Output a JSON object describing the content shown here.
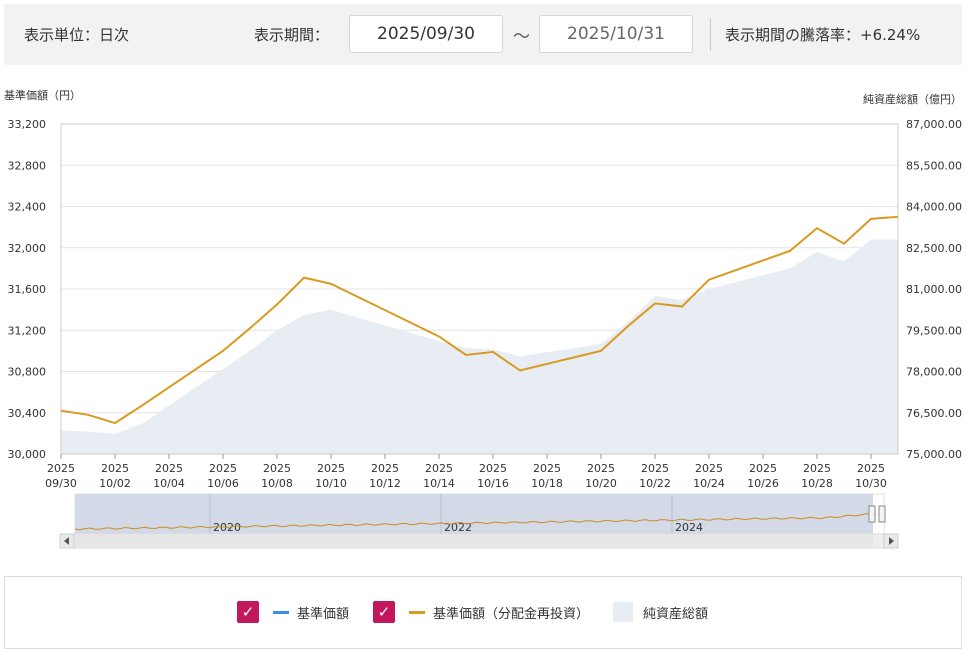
{
  "controls": {
    "unit_label": "表示単位：日次",
    "period_label": "表示期間：",
    "start_date": "2025/09/30",
    "separator": "〜",
    "end_date": "2025/10/31",
    "change_label": "表示期間の騰落率：+6.24%"
  },
  "legend": {
    "items": [
      {
        "label": "基準価額",
        "color": "#3a8ee6",
        "checked": true
      },
      {
        "label": "基準価額（分配金再投資）",
        "color": "#d89a1f",
        "checked": true
      },
      {
        "label": "純資産総額",
        "color": "#e8ecf3"
      }
    ]
  },
  "chart_data": {
    "type": "line",
    "left_axis_title": "基準価額（円）",
    "right_axis_title": "純資産総額（億円）",
    "left_ylim": [
      30000,
      33200
    ],
    "right_ylim": [
      75000,
      87000
    ],
    "left_ticks": [
      "33,200",
      "32,800",
      "32,400",
      "32,000",
      "31,600",
      "31,200",
      "30,800",
      "30,400",
      "30,000"
    ],
    "right_ticks": [
      "87,000.00",
      "85,500.00",
      "84,000.00",
      "82,500.00",
      "81,000.00",
      "79,500.00",
      "78,000.00",
      "76,500.00",
      "75,000.00"
    ],
    "x_ticks": [
      {
        "year": "2025",
        "day": "09/30",
        "d": 0
      },
      {
        "year": "2025",
        "day": "10/02",
        "d": 2
      },
      {
        "year": "2025",
        "day": "10/04",
        "d": 4
      },
      {
        "year": "2025",
        "day": "10/06",
        "d": 6
      },
      {
        "year": "2025",
        "day": "10/08",
        "d": 8
      },
      {
        "year": "2025",
        "day": "10/10",
        "d": 10
      },
      {
        "year": "2025",
        "day": "10/12",
        "d": 12
      },
      {
        "year": "2025",
        "day": "10/14",
        "d": 14
      },
      {
        "year": "2025",
        "day": "10/16",
        "d": 16
      },
      {
        "year": "2025",
        "day": "10/18",
        "d": 18
      },
      {
        "year": "2025",
        "day": "10/20",
        "d": 20
      },
      {
        "year": "2025",
        "day": "10/22",
        "d": 22
      },
      {
        "year": "2025",
        "day": "10/24",
        "d": 24
      },
      {
        "year": "2025",
        "day": "10/26",
        "d": 26
      },
      {
        "year": "2025",
        "day": "10/28",
        "d": 28
      },
      {
        "year": "2025",
        "day": "10/30",
        "d": 30
      }
    ],
    "x_range_days": [
      0,
      31
    ],
    "series": [
      {
        "name": "基準価額（分配金再投資）",
        "color": "#d89a1f",
        "axis": "left",
        "points": [
          {
            "d": 0,
            "v": 30420
          },
          {
            "d": 1,
            "v": 30380
          },
          {
            "d": 2,
            "v": 30300
          },
          {
            "d": 3,
            "v": 30470
          },
          {
            "d": 6,
            "v": 31000
          },
          {
            "d": 7,
            "v": 31220
          },
          {
            "d": 8,
            "v": 31450
          },
          {
            "d": 9,
            "v": 31710
          },
          {
            "d": 10,
            "v": 31650
          },
          {
            "d": 14,
            "v": 31140
          },
          {
            "d": 15,
            "v": 30960
          },
          {
            "d": 16,
            "v": 30990
          },
          {
            "d": 17,
            "v": 30810
          },
          {
            "d": 20,
            "v": 31000
          },
          {
            "d": 21,
            "v": 31240
          },
          {
            "d": 22,
            "v": 31460
          },
          {
            "d": 23,
            "v": 31430
          },
          {
            "d": 24,
            "v": 31690
          },
          {
            "d": 27,
            "v": 31970
          },
          {
            "d": 28,
            "v": 32190
          },
          {
            "d": 29,
            "v": 32040
          },
          {
            "d": 30,
            "v": 32280
          },
          {
            "d": 31,
            "v": 32300
          }
        ]
      },
      {
        "name": "純資産総額",
        "color": "#e8ecf3",
        "axis": "right",
        "type": "area",
        "points": [
          {
            "d": 0,
            "v": 75850
          },
          {
            "d": 1,
            "v": 75820
          },
          {
            "d": 2,
            "v": 75730
          },
          {
            "d": 3,
            "v": 76100
          },
          {
            "d": 7,
            "v": 78750
          },
          {
            "d": 8,
            "v": 79500
          },
          {
            "d": 9,
            "v": 80050
          },
          {
            "d": 10,
            "v": 80250
          },
          {
            "d": 14,
            "v": 79100
          },
          {
            "d": 15,
            "v": 78850
          },
          {
            "d": 16,
            "v": 78800
          },
          {
            "d": 17,
            "v": 78550
          },
          {
            "d": 20,
            "v": 79000
          },
          {
            "d": 21,
            "v": 79800
          },
          {
            "d": 22,
            "v": 80750
          },
          {
            "d": 23,
            "v": 80600
          },
          {
            "d": 24,
            "v": 81000
          },
          {
            "d": 27,
            "v": 81750
          },
          {
            "d": 28,
            "v": 82350
          },
          {
            "d": 29,
            "v": 82000
          },
          {
            "d": 30,
            "v": 82800
          },
          {
            "d": 31,
            "v": 82800
          }
        ]
      }
    ],
    "navigator": {
      "year_labels": [
        "2020",
        "2022",
        "2024"
      ]
    },
    "grid": true
  }
}
